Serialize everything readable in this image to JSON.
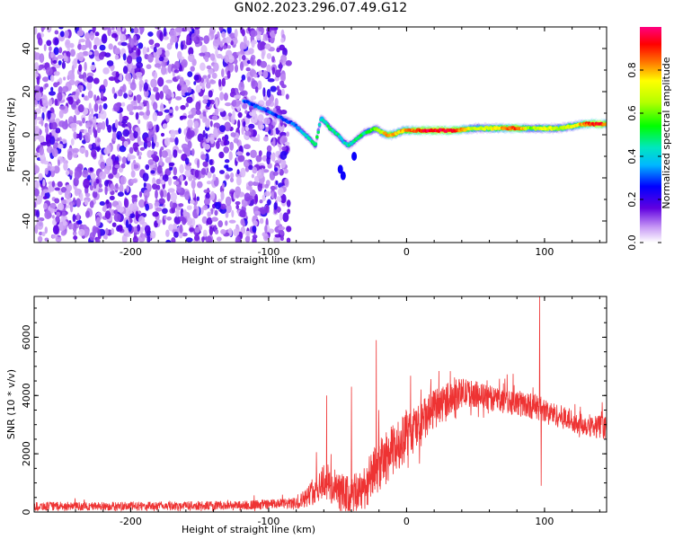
{
  "title": "GN02.2023.296.07.49.G12",
  "chart_data": [
    {
      "type": "heatmap",
      "title": "GN02.2023.296.07.49.G12",
      "xlabel": "Height of straight line (km)",
      "ylabel": "Frequency (Hz)",
      "xlim": [
        -270,
        145
      ],
      "ylim": [
        -50,
        50
      ],
      "xticks": [
        -200,
        -100,
        0,
        100
      ],
      "yticks": [
        -40,
        -20,
        0,
        20,
        40
      ],
      "noise_region_x": [
        -270,
        -88
      ],
      "ridge": {
        "x": [
          -118,
          -112,
          -105,
          -98,
          -92,
          -85,
          -80,
          -75,
          -70,
          -66,
          -62,
          -58,
          -54,
          -50,
          -46,
          -42,
          -38,
          -34,
          -30,
          -26,
          -22,
          -18,
          -14,
          -10,
          -6,
          -2,
          5,
          15,
          25,
          35,
          50,
          65,
          80,
          90,
          100,
          110,
          120,
          130,
          140,
          145
        ],
        "y": [
          16,
          14,
          12,
          10,
          8,
          6,
          4,
          1,
          -2,
          -5,
          8,
          5,
          2,
          0,
          -3,
          -5,
          -3,
          -1,
          1,
          2,
          3,
          1,
          0,
          0,
          1,
          2,
          2,
          2,
          2,
          2,
          3,
          3,
          3,
          3,
          3,
          3,
          4,
          5,
          5,
          5
        ],
        "amplitude": [
          0.3,
          0.3,
          0.35,
          0.3,
          0.3,
          0.3,
          0.35,
          0.4,
          0.45,
          0.5,
          0.4,
          0.45,
          0.5,
          0.45,
          0.4,
          0.45,
          0.45,
          0.5,
          0.5,
          0.55,
          0.6,
          0.7,
          0.85,
          0.8,
          0.75,
          0.8,
          0.85,
          0.95,
          0.95,
          0.9,
          0.65,
          0.75,
          0.9,
          0.6,
          0.75,
          0.65,
          0.7,
          0.85,
          0.95,
          0.8
        ]
      },
      "colorbar": {
        "label": "Normalized spectral amplitude",
        "ticks": [
          0.0,
          0.2,
          0.4,
          0.6,
          0.8
        ],
        "tick_labels": [
          "0.0",
          "0.2",
          "0.4",
          "0.6",
          "0.8"
        ],
        "range": [
          0,
          1
        ]
      }
    },
    {
      "type": "line",
      "xlabel": "Height of straight line (km)",
      "ylabel": "SNR (10 * v/v)",
      "xlim": [
        -270,
        145
      ],
      "ylim": [
        0,
        7400
      ],
      "xticks": [
        -200,
        -100,
        0,
        100
      ],
      "yticks": [
        0,
        2000,
        4000,
        6000
      ],
      "color": "#ee3333",
      "envelope": {
        "x": [
          -270,
          -200,
          -120,
          -90,
          -80,
          -70,
          -60,
          -50,
          -40,
          -30,
          -20,
          -10,
          0,
          10,
          20,
          30,
          40,
          50,
          60,
          70,
          80,
          90,
          95,
          100,
          110,
          120,
          130,
          145
        ],
        "base": [
          200,
          200,
          230,
          280,
          300,
          600,
          1100,
          700,
          500,
          900,
          1600,
          2100,
          2600,
          3000,
          3500,
          3900,
          4100,
          4050,
          3900,
          3850,
          3750,
          3650,
          3600,
          3500,
          3300,
          3150,
          3000,
          2900
        ],
        "spread": [
          150,
          150,
          160,
          180,
          200,
          400,
          700,
          700,
          700,
          800,
          900,
          900,
          900,
          800,
          700,
          600,
          500,
          450,
          450,
          450,
          450,
          450,
          450,
          400,
          400,
          400,
          400,
          400
        ]
      },
      "spikes": [
        {
          "x": -58,
          "y": 4000
        },
        {
          "x": -40,
          "y": 4300
        },
        {
          "x": -22,
          "y": 5900
        },
        {
          "x": 96.5,
          "y": 7400
        },
        {
          "x": 97.5,
          "y": 900
        }
      ]
    }
  ]
}
